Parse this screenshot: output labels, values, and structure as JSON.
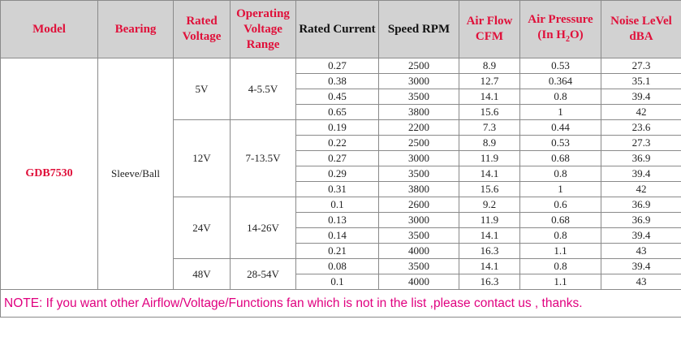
{
  "header": {
    "model": "Model",
    "bearing": "Bearing",
    "rated_voltage": [
      "Rated",
      "Voltage"
    ],
    "operating_voltage_range": [
      "Operating",
      "Voltage",
      "Range"
    ],
    "rated_current": "Rated Current",
    "speed_rpm": "Speed RPM",
    "air_flow": [
      "Air Flow",
      "CFM"
    ],
    "air_pressure": [
      "Air Pressure",
      "(In H",
      "2",
      "O)"
    ],
    "noise_level": [
      "Noise LeVel",
      "dBA"
    ]
  },
  "model": "GDB7530",
  "bearing": "Sleeve/Ball",
  "groups": [
    {
      "voltage": "5V",
      "range": "4-5.5V",
      "rows": [
        [
          0.27,
          2500,
          8.9,
          0.53,
          27.3
        ],
        [
          0.38,
          3000,
          12.7,
          0.364,
          35.1
        ],
        [
          0.45,
          3500,
          14.1,
          0.8,
          39.4
        ],
        [
          0.65,
          3800,
          15.6,
          1,
          42
        ]
      ]
    },
    {
      "voltage": "12V",
      "range": "7-13.5V",
      "rows": [
        [
          0.19,
          2200,
          7.3,
          0.44,
          23.6
        ],
        [
          0.22,
          2500,
          8.9,
          0.53,
          27.3
        ],
        [
          0.27,
          3000,
          11.9,
          0.68,
          36.9
        ],
        [
          0.29,
          3500,
          14.1,
          0.8,
          39.4
        ],
        [
          0.31,
          3800,
          15.6,
          1,
          42
        ]
      ]
    },
    {
      "voltage": "24V",
      "range": "14-26V",
      "rows": [
        [
          0.1,
          2600,
          9.2,
          0.6,
          36.9
        ],
        [
          0.13,
          3000,
          11.9,
          0.68,
          36.9
        ],
        [
          0.14,
          3500,
          14.1,
          0.8,
          39.4
        ],
        [
          0.21,
          4000,
          16.3,
          1.1,
          43
        ]
      ]
    },
    {
      "voltage": "48V",
      "range": "28-54V",
      "rows": [
        [
          0.08,
          3500,
          14.1,
          0.8,
          39.4
        ],
        [
          0.1,
          4000,
          16.3,
          1.1,
          43
        ]
      ]
    }
  ],
  "note": "NOTE: If you want other Airflow/Voltage/Functions fan which is not in the list ,please contact us , thanks."
}
